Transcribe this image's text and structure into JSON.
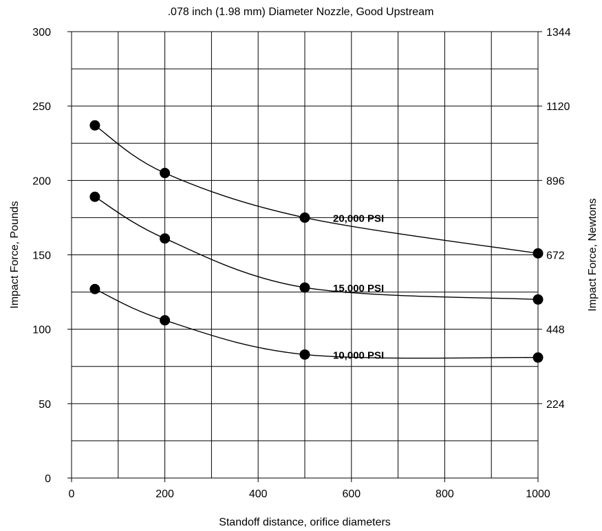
{
  "chart_data": {
    "type": "line",
    "title": ".078 inch (1.98 mm) Diameter Nozzle, Good Upstream",
    "xlabel": "Standoff distance, orifice diameters",
    "ylabel": "Impact Force, Pounds",
    "y2label": "Impact Force, Newtons",
    "xlim": [
      0,
      1000
    ],
    "ylim": [
      0,
      300
    ],
    "y2lim": [
      0,
      1344
    ],
    "x_ticks": [
      "0",
      "200",
      "400",
      "600",
      "800",
      "1000"
    ],
    "y_ticks": [
      "0",
      "50",
      "100",
      "150",
      "200",
      "250",
      "300"
    ],
    "y2_ticks": [
      "224",
      "448",
      "672",
      "896",
      "1120",
      "1344"
    ],
    "grid": true,
    "series": [
      {
        "name": "20,000 PSI",
        "x": [
          50,
          200,
          500,
          1000
        ],
        "y": [
          237,
          205,
          175,
          151
        ]
      },
      {
        "name": "15,000 PSI",
        "x": [
          50,
          200,
          500,
          1000
        ],
        "y": [
          189,
          161,
          128,
          120
        ]
      },
      {
        "name": "10,000 PSI",
        "x": [
          50,
          200,
          500,
          1000
        ],
        "y": [
          127,
          106,
          83,
          81
        ]
      }
    ]
  }
}
